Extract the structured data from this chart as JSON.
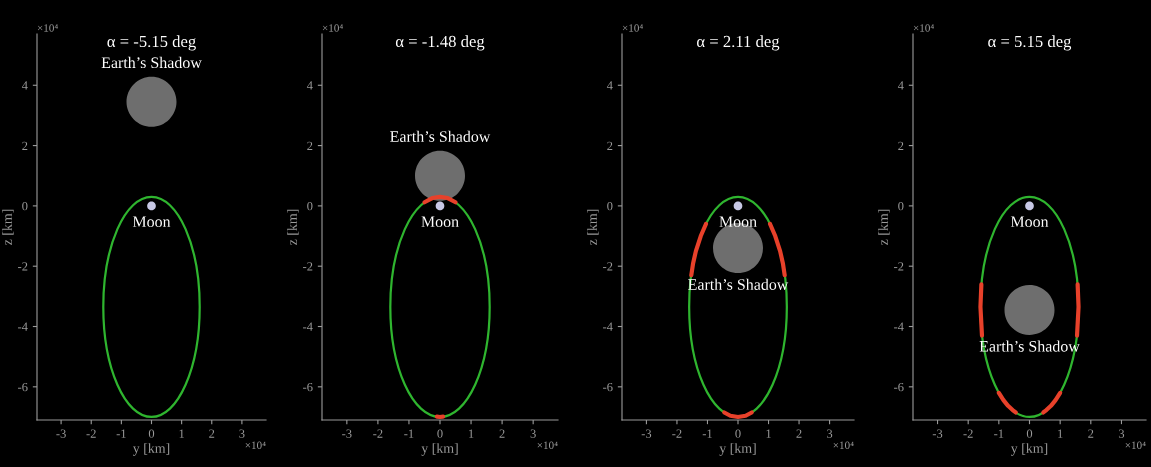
{
  "chart_data": [
    {
      "type": "bubble",
      "title": "α = -5.15 deg",
      "xlabel": "y [km]",
      "ylabel": "z [km]",
      "xlim": [
        -3.8,
        3.8
      ],
      "ylim": [
        -7.1,
        5.7
      ],
      "xticks": [
        -3,
        -2,
        -1,
        0,
        1,
        2,
        3
      ],
      "yticks": [
        -6,
        -4,
        -2,
        0,
        2,
        4
      ],
      "grid": false,
      "annotations": [
        "×10⁴",
        "×10⁴"
      ],
      "series": [
        {
          "name": "Earth’s Shadow",
          "color": "#6e6e6e",
          "x": [
            0
          ],
          "values": [
            3.45
          ],
          "sizes": [
            1
          ]
        },
        {
          "name": "Moon",
          "color": "#c8c8e6",
          "x": [
            0
          ],
          "values": [
            0
          ],
          "sizes": [
            0.03
          ]
        }
      ]
    },
    {
      "type": "line",
      "title": "α = -1.48 deg",
      "xlabel": "y [km]",
      "ylabel": "z [km]",
      "xlim": [
        -3.8,
        3.8
      ],
      "ylim": [
        -7.1,
        5.7
      ],
      "xticks": [
        -3,
        -2,
        -1,
        0,
        1,
        2,
        3
      ],
      "yticks": [
        -6,
        -4,
        -2,
        0,
        2,
        4
      ],
      "grid": false,
      "annotations": [
        "×10⁴",
        "×10⁴"
      ],
      "series": [
        {
          "color": "#e8412a",
          "x": [
            -0.5,
            -0.25,
            0,
            0.25,
            0.5
          ],
          "values": [
            0.12,
            0.26,
            0.3,
            0.26,
            0.12
          ]
        },
        {
          "color": "#e8412a",
          "x": [
            -0.1,
            0,
            0.1
          ],
          "values": [
            -6.99,
            -7.0,
            -6.99
          ]
        },
        {
          "type": "bubble",
          "name": "Earth’s Shadow",
          "color": "#6e6e6e",
          "x": [
            0
          ],
          "values": [
            1.0
          ],
          "sizes": [
            1
          ]
        },
        {
          "type": "bubble",
          "name": "Moon",
          "color": "#c8c8e6",
          "x": [
            0
          ],
          "values": [
            0
          ],
          "sizes": [
            0.03
          ]
        }
      ]
    },
    {
      "type": "line",
      "title": "α = 2.11 deg",
      "xlabel": "y [km]",
      "ylabel": "z [km]",
      "xlim": [
        -3.8,
        3.8
      ],
      "ylim": [
        -7.1,
        5.7
      ],
      "xticks": [
        -3,
        -2,
        -1,
        0,
        1,
        2,
        3
      ],
      "yticks": [
        -6,
        -4,
        -2,
        0,
        2,
        4
      ],
      "grid": false,
      "annotations": [
        "×10⁴",
        "×10⁴"
      ],
      "series": [
        {
          "color": "#e8412a",
          "x": [
            -1.53,
            -1.47,
            -1.38,
            -1.22,
            -1.05
          ],
          "values": [
            -2.3,
            -1.9,
            -1.5,
            -1.0,
            -0.6
          ]
        },
        {
          "color": "#e8412a",
          "x": [
            1.05,
            1.22,
            1.38,
            1.47,
            1.53
          ],
          "values": [
            -0.6,
            -1.0,
            -1.5,
            -1.9,
            -2.3
          ]
        },
        {
          "color": "#e8412a",
          "x": [
            -0.45,
            -0.25,
            0,
            0.25,
            0.45
          ],
          "values": [
            -6.85,
            -6.96,
            -7.0,
            -6.96,
            -6.85
          ]
        },
        {
          "type": "bubble",
          "name": "Earth’s Shadow",
          "color": "#6e6e6e",
          "x": [
            0
          ],
          "values": [
            -1.4
          ],
          "sizes": [
            1
          ]
        },
        {
          "type": "bubble",
          "name": "Moon",
          "color": "#c8c8e6",
          "x": [
            0
          ],
          "values": [
            0
          ],
          "sizes": [
            0.03
          ]
        }
      ]
    },
    {
      "type": "line",
      "title": "α = 5.15 deg",
      "xlabel": "y [km]",
      "ylabel": "z [km]",
      "xlim": [
        -3.8,
        3.8
      ],
      "ylim": [
        -7.1,
        5.7
      ],
      "xticks": [
        -3,
        -2,
        -1,
        0,
        1,
        2,
        3
      ],
      "yticks": [
        -6,
        -4,
        -2,
        0,
        2,
        4
      ],
      "grid": false,
      "annotations": [
        "×10⁴",
        "×10⁴"
      ],
      "series": [
        {
          "color": "#e8412a",
          "x": [
            -1.57,
            -1.6,
            -1.55
          ],
          "values": [
            -2.6,
            -3.35,
            -4.3
          ]
        },
        {
          "color": "#e8412a",
          "x": [
            1.57,
            1.6,
            1.55
          ],
          "values": [
            -2.6,
            -3.35,
            -4.3
          ]
        },
        {
          "color": "#e8412a",
          "x": [
            -1.0,
            -0.85,
            -0.7,
            -0.55,
            -0.45
          ],
          "values": [
            -6.2,
            -6.44,
            -6.63,
            -6.77,
            -6.85
          ]
        },
        {
          "color": "#e8412a",
          "x": [
            0.45,
            0.55,
            0.7,
            0.85,
            1.0
          ],
          "values": [
            -6.85,
            -6.77,
            -6.63,
            -6.44,
            -6.2
          ]
        },
        {
          "type": "bubble",
          "name": "Earth’s Shadow",
          "color": "#6e6e6e",
          "x": [
            0
          ],
          "values": [
            -3.45
          ],
          "sizes": [
            1
          ]
        },
        {
          "type": "bubble",
          "name": "Moon",
          "color": "#c8c8e6",
          "x": [
            0
          ],
          "values": [
            0
          ],
          "sizes": [
            0.03
          ]
        }
      ]
    }
  ]
}
